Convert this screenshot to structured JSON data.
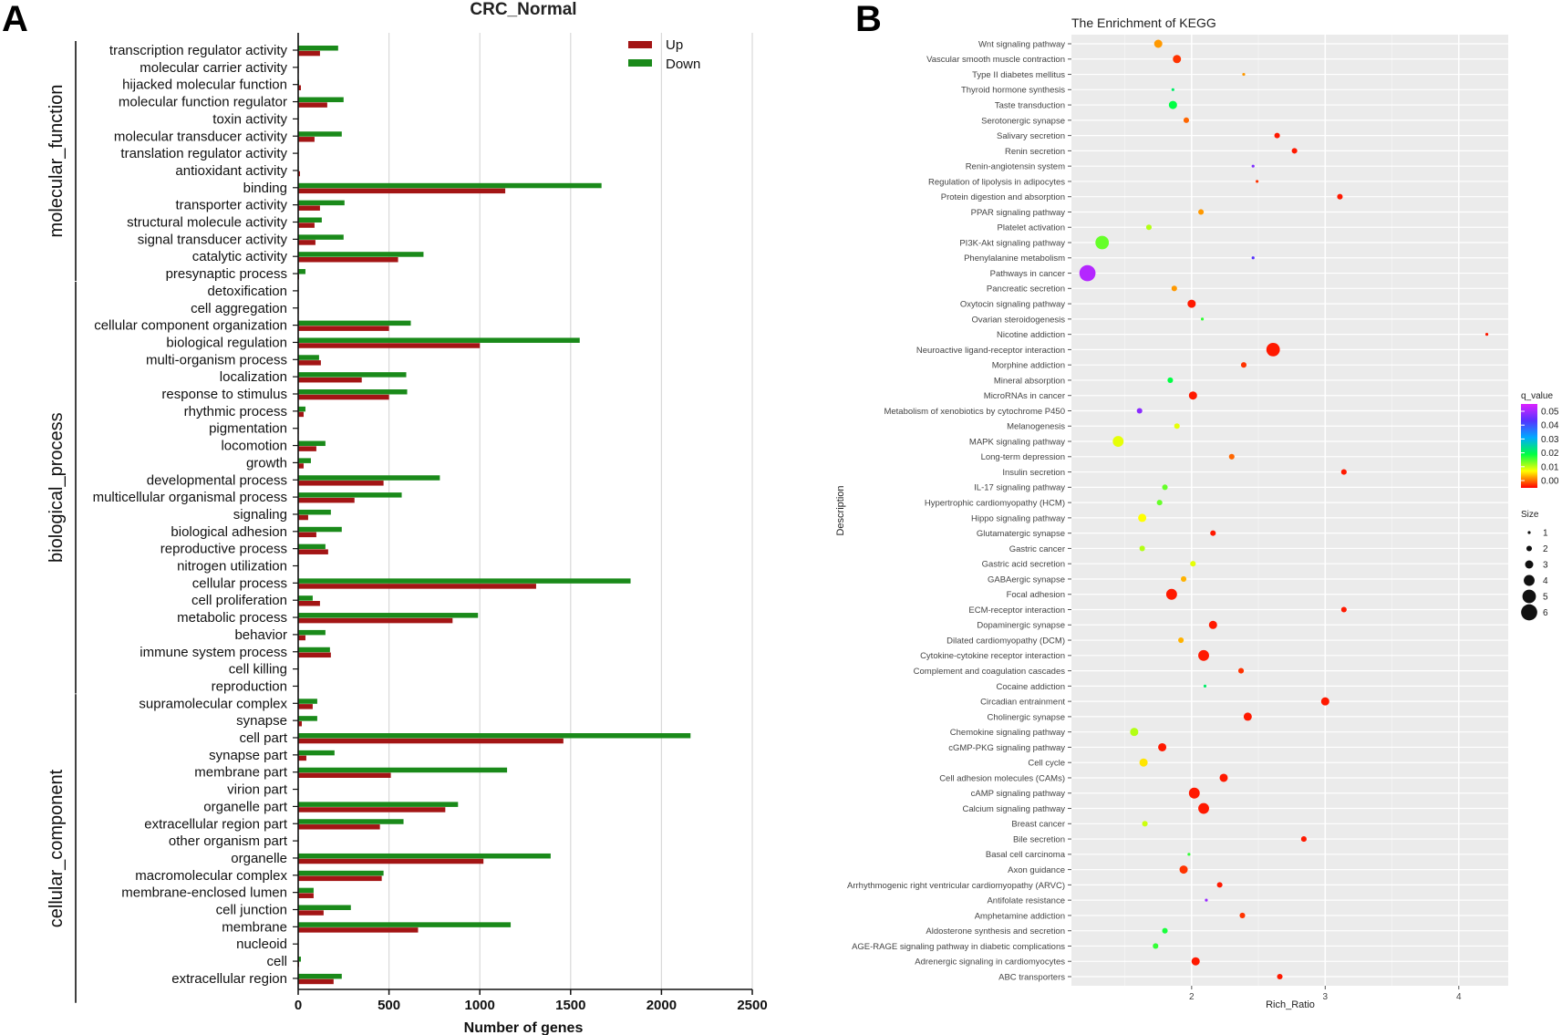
{
  "panel_a_letter": "A",
  "panel_b_letter": "B",
  "chart_data": [
    {
      "type": "bar",
      "orientation": "horizontal",
      "title": "CRC_Normal",
      "xlabel": "Number of genes",
      "ylabel": "",
      "xlim": [
        0,
        2500
      ],
      "xticks": [
        0,
        500,
        1000,
        1500,
        2000,
        2500
      ],
      "grid": true,
      "legend": {
        "position": "top-right"
      },
      "groups": [
        {
          "name": "molecular_function",
          "start": 0,
          "end": 13
        },
        {
          "name": "biological_process",
          "start": 14,
          "end": 37
        },
        {
          "name": "cellular_component",
          "start": 38,
          "end": 55
        }
      ],
      "categories": [
        "transcription regulator activity",
        "molecular carrier activity",
        "hijacked molecular function",
        "molecular function regulator",
        "toxin activity",
        "molecular transducer activity",
        "translation regulator activity",
        "antioxidant activity",
        "binding",
        "transporter activity",
        "structural molecule activity",
        "signal transducer activity",
        "catalytic activity",
        "presynaptic process",
        "detoxification",
        "cell aggregation",
        "cellular component organization",
        "biological regulation",
        "multi-organism process",
        "localization",
        "response to stimulus",
        "rhythmic process",
        "pigmentation",
        "locomotion",
        "growth",
        "developmental process",
        "multicellular organismal process",
        "signaling",
        "biological adhesion",
        "reproductive process",
        "nitrogen utilization",
        "cellular process",
        "cell proliferation",
        "metabolic process",
        "behavior",
        "immune system process",
        "cell killing",
        "reproduction",
        "supramolecular complex",
        "synapse",
        "cell part",
        "synapse part",
        "membrane part",
        "virion part",
        "organelle part",
        "extracellular region part",
        "other organism part",
        "organelle",
        "macromolecular complex",
        "membrane-enclosed lumen",
        "cell junction",
        "membrane",
        "nucleoid",
        "cell",
        "extracellular region"
      ],
      "series": [
        {
          "name": "Up",
          "color": "#a31515",
          "values": [
            120,
            3,
            15,
            160,
            3,
            90,
            3,
            10,
            1140,
            120,
            90,
            95,
            550,
            5,
            3,
            3,
            500,
            1000,
            125,
            350,
            500,
            30,
            3,
            100,
            30,
            470,
            310,
            55,
            100,
            165,
            3,
            1310,
            120,
            850,
            40,
            180,
            3,
            3,
            80,
            20,
            1460,
            45,
            510,
            3,
            810,
            450,
            3,
            1020,
            460,
            85,
            140,
            660,
            3,
            5,
            195
          ]
        },
        {
          "name": "Down",
          "color": "#1a8a1a",
          "values": [
            220,
            3,
            5,
            250,
            3,
            240,
            3,
            3,
            1670,
            255,
            130,
            250,
            690,
            40,
            3,
            3,
            620,
            1550,
            115,
            595,
            600,
            40,
            3,
            150,
            70,
            780,
            570,
            180,
            240,
            150,
            3,
            1830,
            80,
            990,
            150,
            175,
            3,
            3,
            105,
            105,
            2160,
            200,
            1150,
            3,
            880,
            580,
            3,
            1390,
            470,
            85,
            290,
            1170,
            3,
            15,
            240
          ]
        }
      ]
    },
    {
      "type": "scatter",
      "title": "The Enrichment of KEGG",
      "xlabel": "Rich_Ratio",
      "ylabel": "Description",
      "xlim": [
        1.1,
        4.37
      ],
      "xticks": [
        2,
        3,
        4
      ],
      "grid": true,
      "color_legend": {
        "title": "q_value",
        "ticks": [
          "0.05",
          "0.04",
          "0.03",
          "0.02",
          "0.01",
          "0.00"
        ],
        "range": [
          0,
          0.05
        ],
        "colors": [
          "#ff0000",
          "#ffff00",
          "#00ff44",
          "#00aaff",
          "#5533ff",
          "#dd22ff"
        ]
      },
      "size_legend": {
        "title": "Size",
        "ticks": [
          1,
          2,
          3,
          4,
          5,
          6
        ]
      },
      "categories": [
        "Wnt signaling pathway",
        "Vascular smooth muscle contraction",
        "Type II diabetes mellitus",
        "Thyroid hormone synthesis",
        "Taste transduction",
        "Serotonergic synapse",
        "Salivary secretion",
        "Renin secretion",
        "Renin-angiotensin system",
        "Regulation of lipolysis in adipocytes",
        "Protein digestion and absorption",
        "PPAR signaling pathway",
        "Platelet activation",
        "PI3K-Akt signaling pathway",
        "Phenylalanine metabolism",
        "Pathways in cancer",
        "Pancreatic secretion",
        "Oxytocin signaling pathway",
        "Ovarian steroidogenesis",
        "Nicotine addiction",
        "Neuroactive ligand-receptor interaction",
        "Morphine addiction",
        "Mineral absorption",
        "MicroRNAs in cancer",
        "Metabolism of xenobiotics by cytochrome P450",
        "Melanogenesis",
        "MAPK signaling pathway",
        "Long-term depression",
        "Insulin secretion",
        "IL-17 signaling pathway",
        "Hypertrophic cardiomyopathy (HCM)",
        "Hippo signaling pathway",
        "Glutamatergic synapse",
        "Gastric cancer",
        "Gastric acid secretion",
        "GABAergic synapse",
        "Focal adhesion",
        "ECM-receptor interaction",
        "Dopaminergic synapse",
        "Dilated cardiomyopathy (DCM)",
        "Cytokine-cytokine receptor interaction",
        "Complement and coagulation cascades",
        "Cocaine addiction",
        "Circadian entrainment",
        "Cholinergic synapse",
        "Chemokine signaling pathway",
        "cGMP-PKG signaling pathway",
        "Cell cycle",
        "Cell adhesion molecules (CAMs)",
        "cAMP signaling pathway",
        "Calcium signaling pathway",
        "Breast cancer",
        "Bile secretion",
        "Basal cell carcinoma",
        "Axon guidance",
        "Arrhythmogenic right ventricular cardiomyopathy (ARVC)",
        "Antifolate resistance",
        "Amphetamine addiction",
        "Aldosterone synthesis and secretion",
        "AGE-RAGE signaling pathway in diabetic complications",
        "Adrenergic signaling in cardiomyocytes",
        "ABC transporters"
      ],
      "x": [
        1.75,
        1.89,
        2.39,
        1.86,
        1.86,
        1.96,
        2.64,
        2.77,
        2.46,
        2.49,
        3.11,
        2.07,
        1.68,
        1.33,
        2.46,
        1.22,
        1.87,
        2.0,
        2.08,
        4.21,
        2.61,
        2.39,
        1.84,
        2.01,
        1.61,
        1.89,
        1.45,
        2.3,
        3.14,
        1.8,
        1.76,
        1.63,
        2.16,
        1.63,
        2.01,
        1.94,
        1.85,
        3.14,
        2.16,
        1.92,
        2.09,
        2.37,
        2.1,
        3.0,
        2.42,
        1.57,
        1.78,
        1.64,
        2.24,
        2.02,
        2.09,
        1.65,
        2.84,
        1.98,
        1.94,
        2.21,
        2.11,
        2.38,
        1.8,
        1.73,
        2.03,
        2.66
      ],
      "q_value": [
        0.006,
        0.002,
        0.006,
        0.022,
        0.02,
        0.004,
        0.001,
        0.001,
        0.043,
        0.002,
        0.001,
        0.006,
        0.013,
        0.016,
        0.04,
        0.047,
        0.006,
        0.001,
        0.018,
        0.001,
        0.001,
        0.002,
        0.02,
        0.001,
        0.044,
        0.011,
        0.011,
        0.004,
        0.001,
        0.016,
        0.016,
        0.01,
        0.001,
        0.013,
        0.011,
        0.007,
        0.001,
        0.001,
        0.001,
        0.007,
        0.001,
        0.002,
        0.022,
        0.001,
        0.001,
        0.013,
        0.001,
        0.009,
        0.001,
        0.001,
        0.001,
        0.012,
        0.001,
        0.018,
        0.002,
        0.001,
        0.045,
        0.002,
        0.019,
        0.018,
        0.001,
        0.001
      ],
      "size": [
        3,
        3,
        1,
        1,
        3,
        2,
        2,
        2,
        1,
        1,
        2,
        2,
        2,
        5,
        1,
        6,
        2,
        3,
        1,
        1,
        5,
        2,
        2,
        3,
        2,
        2,
        4,
        2,
        2,
        2,
        2,
        3,
        2,
        2,
        2,
        2,
        4,
        2,
        3,
        2,
        4,
        2,
        1,
        3,
        3,
        3,
        3,
        3,
        3,
        4,
        4,
        2,
        2,
        1,
        3,
        2,
        1,
        2,
        2,
        2,
        3,
        2
      ]
    }
  ]
}
